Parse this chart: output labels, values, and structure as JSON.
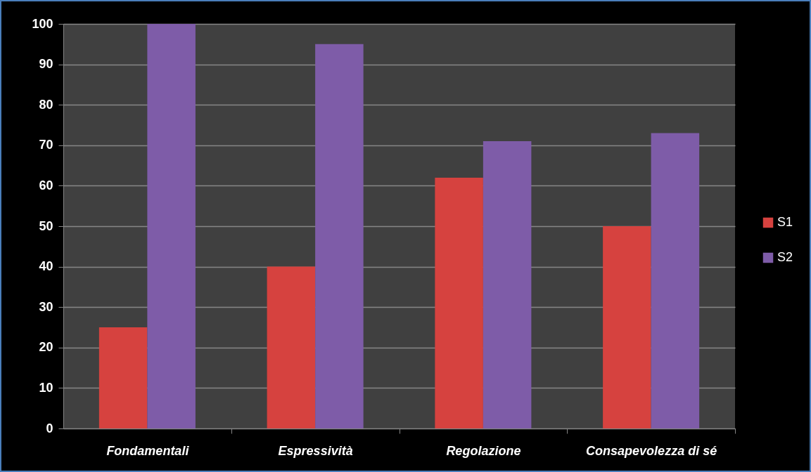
{
  "chart_data": {
    "type": "bar",
    "categories": [
      "Fondamentali",
      "Espressività",
      "Regolazione",
      "Consapevolezza di sé"
    ],
    "series": [
      {
        "name": "S1",
        "color": "#d6423f",
        "values": [
          25,
          40,
          62,
          50
        ]
      },
      {
        "name": "S2",
        "color": "#7e5ca8",
        "values": [
          100,
          95,
          71,
          73
        ]
      }
    ],
    "ylim": [
      0,
      100
    ],
    "yticks": [
      0,
      10,
      20,
      30,
      40,
      50,
      60,
      70,
      80,
      90,
      100
    ],
    "grid": "y",
    "legend": "right"
  }
}
